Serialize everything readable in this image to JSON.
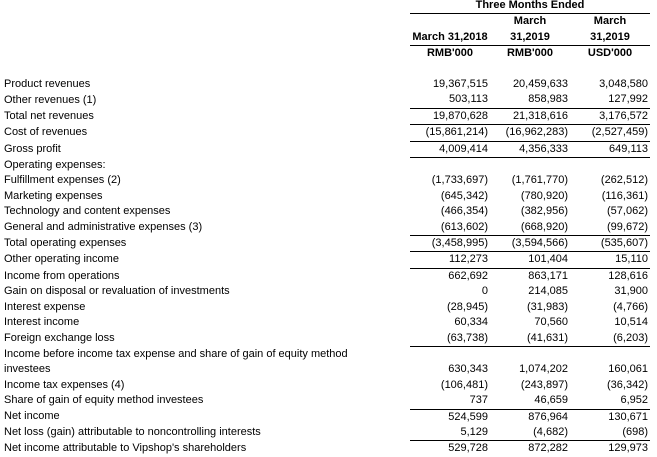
{
  "header": {
    "group_title": "Three Months Ended",
    "columns": [
      {
        "line1": "",
        "line2": "March 31,2018",
        "unit": "RMB'000"
      },
      {
        "line1": "March",
        "line2": "31,2019",
        "unit": "RMB'000"
      },
      {
        "line1": "March",
        "line2": "31,2019",
        "unit": "USD'000"
      }
    ]
  },
  "rows": [
    {
      "label": "Product revenues",
      "values": [
        "19,367,515",
        "20,459,633",
        "3,048,580"
      ]
    },
    {
      "label": "Other revenues (1)",
      "values": [
        "503,113",
        "858,983",
        "127,992"
      ]
    },
    {
      "label": "Total net revenues",
      "values": [
        "19,870,628",
        "21,318,616",
        "3,176,572"
      ],
      "line_above": true
    },
    {
      "label": "Cost of revenues",
      "values": [
        "(15,861,214)",
        "(16,962,283)",
        "(2,527,459)"
      ],
      "line_above": true
    },
    {
      "label": "Gross profit",
      "values": [
        "4,009,414",
        "4,356,333",
        "649,113"
      ],
      "line_above": true,
      "line_below": true
    },
    {
      "label": "Operating expenses:",
      "values": [
        "",
        "",
        ""
      ]
    },
    {
      "label": "Fulfillment expenses (2)",
      "values": [
        "(1,733,697)",
        "(1,761,770)",
        "(262,512)"
      ]
    },
    {
      "label": "Marketing expenses",
      "values": [
        "(645,342)",
        "(780,920)",
        "(116,361)"
      ]
    },
    {
      "label": "Technology and content expenses",
      "values": [
        "(466,354)",
        "(382,956)",
        "(57,062)"
      ]
    },
    {
      "label": "General and administrative expenses (3)",
      "values": [
        "(613,602)",
        "(668,920)",
        "(99,672)"
      ]
    },
    {
      "label": "Total operating expenses",
      "values": [
        "(3,458,995)",
        "(3,594,566)",
        "(535,607)"
      ],
      "line_above": true
    },
    {
      "label": "Other operating income",
      "values": [
        "112,273",
        "101,404",
        "15,110"
      ],
      "line_above": true
    },
    {
      "label": "Income from operations",
      "values": [
        "662,692",
        "863,171",
        "128,616"
      ],
      "line_above": true
    },
    {
      "label": "Gain on disposal or revaluation of investments",
      "values": [
        "0",
        "214,085",
        "31,900"
      ]
    },
    {
      "label": "Interest expense",
      "values": [
        "(28,945)",
        "(31,983)",
        "(4,766)"
      ]
    },
    {
      "label": "Interest income",
      "values": [
        "60,334",
        "70,560",
        "10,514"
      ]
    },
    {
      "label": "Foreign exchange loss",
      "values": [
        "(63,738)",
        "(41,631)",
        "(6,203)"
      ],
      "line_below": true
    },
    {
      "label": "Income before income tax expense and share of gain of equity method",
      "values": [
        "",
        "",
        ""
      ]
    },
    {
      "label": "investees",
      "values": [
        "630,343",
        "1,074,202",
        "160,061"
      ]
    },
    {
      "label": "Income tax expenses (4)",
      "values": [
        "(106,481)",
        "(243,897)",
        "(36,342)"
      ]
    },
    {
      "label": "Share of gain of equity method investees",
      "values": [
        "737",
        "46,659",
        "6,952"
      ]
    },
    {
      "label": "Net income",
      "values": [
        "524,599",
        "876,964",
        "130,671"
      ],
      "line_above": true
    },
    {
      "label": "Net loss (gain) attributable to noncontrolling interests",
      "values": [
        "5,129",
        "(4,682)",
        "(698)"
      ]
    },
    {
      "label": "Net income attributable to Vipshop's shareholders",
      "values": [
        "529,728",
        "872,282",
        "129,973"
      ],
      "line_above": true
    }
  ]
}
